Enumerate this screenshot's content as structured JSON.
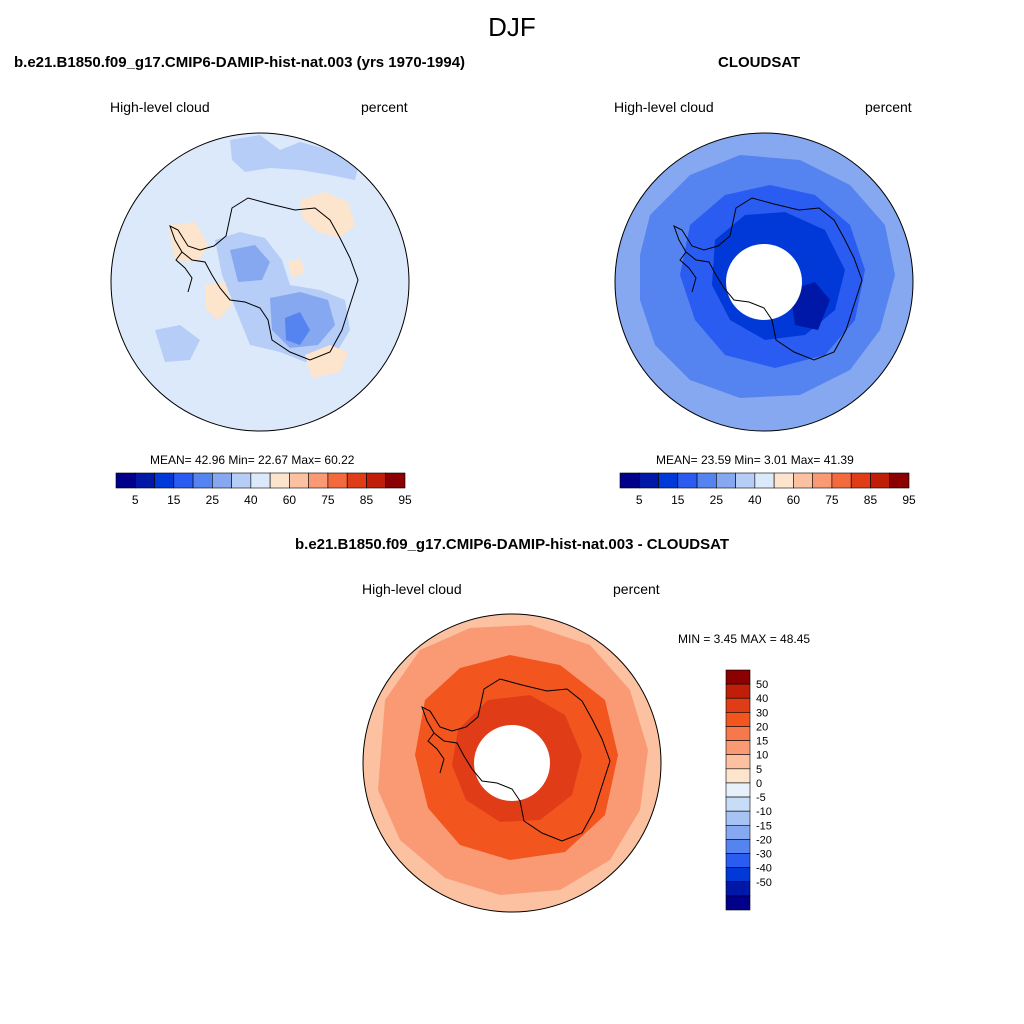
{
  "title": "DJF",
  "panels": {
    "model": {
      "title": "b.e21.B1850.f09_g17.CMIP6-DAMIP-hist-nat.003 (yrs 1970-1994)",
      "left_label": "High-level cloud",
      "right_label": "percent",
      "stats": "MEAN=  42.96  Min=  22.67  Max=  60.22"
    },
    "obs": {
      "title": "CLOUDSAT",
      "left_label": "High-level cloud",
      "right_label": "percent",
      "stats": "MEAN=  23.59  Min=   3.01  Max=  41.39"
    },
    "diff": {
      "title": "b.e21.B1850.f09_g17.CMIP6-DAMIP-hist-nat.003 - CLOUDSAT",
      "left_label": "High-level cloud",
      "right_label": "percent",
      "stats": "MIN =   3.45 MAX =  48.45"
    }
  },
  "colorbar_abs": {
    "colors": [
      "#00008b",
      "#0018a8",
      "#0039d8",
      "#2a5cf2",
      "#5584f0",
      "#86a8f0",
      "#b5cdf7",
      "#dce9fb",
      "#fde4cc",
      "#fbc1a0",
      "#f99a74",
      "#f26a3e",
      "#e13c18",
      "#c01e08",
      "#8b0000"
    ],
    "tick_labels": [
      "5",
      "15",
      "25",
      "40",
      "60",
      "75",
      "85",
      "95"
    ]
  },
  "colorbar_diff": {
    "colors": [
      "#8b0000",
      "#c01e08",
      "#e13c18",
      "#f2551e",
      "#f6784d",
      "#f99a74",
      "#fbc1a0",
      "#fde4cc",
      "#e8f0fb",
      "#c7dcf7",
      "#a6c3f3",
      "#86a8f0",
      "#5584f0",
      "#2a5cf2",
      "#0039d8",
      "#0018a8",
      "#00008b"
    ],
    "tick_labels": [
      "50",
      "40",
      "30",
      "20",
      "15",
      "10",
      "5",
      "0",
      "-5",
      "-10",
      "-15",
      "-20",
      "-30",
      "-40",
      "-50"
    ]
  },
  "map_colors": {
    "model_background": "#dce9fb",
    "model_light_blue": "#b5cdf7",
    "model_mid_blue": "#86a8f0",
    "model_blue": "#5584f0",
    "model_peach": "#fde4cc",
    "obs_outer": "#86a8f0",
    "obs_mid": "#5584f0",
    "obs_inner": "#2a5cf2",
    "obs_deep": "#0039d8",
    "obs_darkest": "#0018a8",
    "diff_outer": "#fbc1a0",
    "diff_mid": "#f99a74",
    "diff_inner": "#f2551e",
    "diff_deep": "#e13c18"
  }
}
